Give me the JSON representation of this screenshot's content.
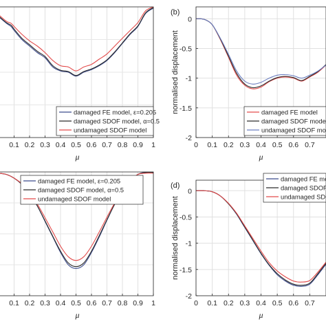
{
  "chart_data": [
    {
      "panel": "",
      "type": "line",
      "xlabel": "μ",
      "ylabel": "",
      "xlim": [
        0,
        1
      ],
      "ylim": [
        -2,
        0
      ],
      "x_ticks": [
        "0.1",
        "0.2",
        "0.3",
        "0.4",
        "0.5",
        "0.6",
        "0.7",
        "0.8",
        "0.9",
        "1"
      ],
      "y_ticks": [],
      "grid": true,
      "legend_position": "bottom-right",
      "series": [
        {
          "name": "damaged FE model, ε=0.205",
          "color": "#3b4a8c",
          "x": [
            0.0,
            0.05,
            0.08,
            0.1,
            0.15,
            0.2,
            0.25,
            0.3,
            0.35,
            0.4,
            0.45,
            0.5,
            0.55,
            0.6,
            0.65,
            0.7,
            0.75,
            0.8,
            0.85,
            0.9,
            0.95,
            1.0
          ],
          "y": [
            -0.15,
            -0.25,
            -0.3,
            -0.36,
            -0.5,
            -0.6,
            -0.7,
            -0.78,
            -0.92,
            -0.98,
            -1.0,
            -1.06,
            -1.0,
            -0.96,
            -0.9,
            -0.82,
            -0.7,
            -0.56,
            -0.42,
            -0.3,
            -0.1,
            -0.02
          ]
        },
        {
          "name": "damaged SDOF model, α=0.5",
          "color": "#2b2b2b",
          "x": [
            0.0,
            0.05,
            0.08,
            0.1,
            0.15,
            0.2,
            0.25,
            0.3,
            0.35,
            0.4,
            0.45,
            0.5,
            0.55,
            0.6,
            0.65,
            0.7,
            0.75,
            0.8,
            0.85,
            0.9,
            0.95,
            1.0
          ],
          "y": [
            -0.14,
            -0.24,
            -0.28,
            -0.34,
            -0.48,
            -0.58,
            -0.68,
            -0.76,
            -0.9,
            -0.97,
            -0.99,
            -1.05,
            -0.99,
            -0.95,
            -0.89,
            -0.81,
            -0.69,
            -0.55,
            -0.41,
            -0.29,
            -0.09,
            -0.01
          ]
        },
        {
          "name": "undamaged SDOF model",
          "color": "#e34a4a",
          "x": [
            0.0,
            0.05,
            0.08,
            0.1,
            0.15,
            0.2,
            0.25,
            0.3,
            0.35,
            0.4,
            0.45,
            0.5,
            0.55,
            0.6,
            0.65,
            0.7,
            0.75,
            0.8,
            0.85,
            0.9,
            0.95,
            1.0
          ],
          "y": [
            -0.12,
            -0.22,
            -0.25,
            -0.3,
            -0.42,
            -0.52,
            -0.6,
            -0.7,
            -0.82,
            -0.9,
            -0.92,
            -0.98,
            -0.92,
            -0.88,
            -0.8,
            -0.72,
            -0.6,
            -0.48,
            -0.36,
            -0.24,
            -0.06,
            0.0
          ]
        }
      ]
    },
    {
      "panel": "(b)",
      "type": "line",
      "xlabel": "μ",
      "ylabel": "normalised displacement",
      "xlim": [
        0,
        0.8
      ],
      "ylim": [
        -2,
        0.2
      ],
      "x_ticks": [
        "0",
        "0.1",
        "0.2",
        "0.3",
        "0.4",
        "0.5",
        "0.6",
        "0.7"
      ],
      "y_ticks": [
        "0",
        "-0.5",
        "-1",
        "-1.5",
        "-2"
      ],
      "grid": true,
      "legend_position": "bottom-right",
      "series": [
        {
          "name": "damaged FE model",
          "color": "#e34a4a",
          "x": [
            0.0,
            0.03,
            0.06,
            0.1,
            0.15,
            0.2,
            0.25,
            0.3,
            0.35,
            0.4,
            0.45,
            0.5,
            0.55,
            0.6,
            0.65,
            0.7,
            0.75,
            0.8
          ],
          "y": [
            0.0,
            0.0,
            -0.02,
            -0.1,
            -0.35,
            -0.65,
            -0.95,
            -1.12,
            -1.18,
            -1.15,
            -1.06,
            -1.0,
            -0.98,
            -1.0,
            -1.05,
            -0.98,
            -0.9,
            -0.78
          ]
        },
        {
          "name": "damaged SDOF model",
          "color": "#2b2b2b",
          "x": [
            0.0,
            0.03,
            0.06,
            0.1,
            0.15,
            0.2,
            0.25,
            0.3,
            0.35,
            0.4,
            0.45,
            0.5,
            0.55,
            0.6,
            0.65,
            0.7,
            0.75,
            0.8
          ],
          "y": [
            0.0,
            0.0,
            -0.02,
            -0.1,
            -0.34,
            -0.63,
            -0.92,
            -1.1,
            -1.16,
            -1.13,
            -1.05,
            -0.99,
            -0.97,
            -0.99,
            -1.04,
            -0.97,
            -0.89,
            -0.77
          ]
        },
        {
          "name": "undamaged SDOF model",
          "color": "#6a7ec0",
          "x": [
            0.0,
            0.03,
            0.06,
            0.1,
            0.15,
            0.2,
            0.25,
            0.3,
            0.35,
            0.4,
            0.45,
            0.5,
            0.55,
            0.6,
            0.65,
            0.7,
            0.75,
            0.8
          ],
          "y": [
            0.0,
            0.0,
            -0.02,
            -0.1,
            -0.33,
            -0.6,
            -0.88,
            -1.05,
            -1.1,
            -1.07,
            -1.0,
            -0.95,
            -0.94,
            -0.96,
            -1.0,
            -0.95,
            -0.88,
            -0.78
          ]
        }
      ]
    },
    {
      "panel": "",
      "type": "line",
      "xlabel": "μ",
      "ylabel": "",
      "xlim": [
        0,
        1
      ],
      "ylim": [
        -2,
        0
      ],
      "x_ticks": [
        "0.1",
        "0.2",
        "0.3",
        "0.4",
        "0.5",
        "0.6",
        "0.7",
        "0.8",
        "0.9",
        "1"
      ],
      "y_ticks": [],
      "grid": true,
      "legend_position": "top-right",
      "series": [
        {
          "name": "damaged FE model, ε=0.205",
          "color": "#3b4a8c",
          "x": [
            0.0,
            0.05,
            0.1,
            0.15,
            0.2,
            0.25,
            0.3,
            0.35,
            0.4,
            0.45,
            0.5,
            0.55,
            0.6,
            0.65,
            0.7,
            0.75,
            0.8,
            0.85,
            0.9,
            0.95,
            1.0
          ],
          "y": [
            -0.02,
            -0.04,
            -0.1,
            -0.2,
            -0.35,
            -0.55,
            -0.8,
            -1.05,
            -1.3,
            -1.5,
            -1.56,
            -1.5,
            -1.3,
            -1.05,
            -0.78,
            -0.52,
            -0.3,
            -0.14,
            -0.04,
            0.0,
            0.0
          ]
        },
        {
          "name": "damaged SDOF model, α=0.5",
          "color": "#2b2b2b",
          "x": [
            0.0,
            0.05,
            0.1,
            0.15,
            0.2,
            0.25,
            0.3,
            0.35,
            0.4,
            0.45,
            0.5,
            0.55,
            0.6,
            0.65,
            0.7,
            0.75,
            0.8,
            0.85,
            0.9,
            0.95,
            1.0
          ],
          "y": [
            -0.02,
            -0.04,
            -0.1,
            -0.2,
            -0.35,
            -0.55,
            -0.79,
            -1.04,
            -1.28,
            -1.47,
            -1.53,
            -1.47,
            -1.28,
            -1.03,
            -0.77,
            -0.52,
            -0.3,
            -0.14,
            -0.04,
            -0.01,
            -0.01
          ]
        },
        {
          "name": "undamaged SDOF model",
          "color": "#e34a4a",
          "x": [
            0.0,
            0.05,
            0.1,
            0.15,
            0.2,
            0.25,
            0.3,
            0.35,
            0.4,
            0.45,
            0.5,
            0.55,
            0.6,
            0.65,
            0.7,
            0.75,
            0.8,
            0.85,
            0.9,
            0.95,
            1.0
          ],
          "y": [
            -0.02,
            -0.04,
            -0.1,
            -0.19,
            -0.33,
            -0.52,
            -0.74,
            -0.97,
            -1.2,
            -1.37,
            -1.43,
            -1.37,
            -1.2,
            -0.97,
            -0.73,
            -0.5,
            -0.29,
            -0.14,
            -0.04,
            -0.02,
            -0.02
          ]
        }
      ]
    },
    {
      "panel": "(d)",
      "type": "line",
      "xlabel": "μ",
      "ylabel": "normalised displacement",
      "xlim": [
        0,
        0.8
      ],
      "ylim": [
        -2,
        0.2
      ],
      "x_ticks": [
        "0",
        "0.1",
        "0.2",
        "0.3",
        "0.4",
        "0.5",
        "0.6",
        "0.7"
      ],
      "y_ticks": [
        "0",
        "-0.5",
        "-1",
        "-1.5",
        "-2"
      ],
      "grid": true,
      "legend_position": "top-right",
      "series": [
        {
          "name": "damaged FE model",
          "color": "#3b4a8c",
          "x": [
            0.0,
            0.05,
            0.1,
            0.15,
            0.2,
            0.25,
            0.3,
            0.35,
            0.4,
            0.45,
            0.5,
            0.55,
            0.6,
            0.65,
            0.7,
            0.75,
            0.8
          ],
          "y": [
            0.0,
            0.0,
            -0.02,
            -0.1,
            -0.25,
            -0.45,
            -0.7,
            -0.95,
            -1.2,
            -1.42,
            -1.6,
            -1.72,
            -1.8,
            -1.82,
            -1.78,
            -1.6,
            -1.4
          ]
        },
        {
          "name": "damaged SDOF model",
          "color": "#2b2b2b",
          "x": [
            0.0,
            0.05,
            0.1,
            0.15,
            0.2,
            0.25,
            0.3,
            0.35,
            0.4,
            0.45,
            0.5,
            0.55,
            0.6,
            0.65,
            0.7,
            0.75,
            0.8
          ],
          "y": [
            0.0,
            0.0,
            -0.02,
            -0.1,
            -0.25,
            -0.44,
            -0.69,
            -0.94,
            -1.19,
            -1.41,
            -1.58,
            -1.7,
            -1.78,
            -1.8,
            -1.76,
            -1.58,
            -1.38
          ]
        },
        {
          "name": "undamaged SDOF model",
          "color": "#e34a4a",
          "x": [
            0.0,
            0.05,
            0.1,
            0.15,
            0.2,
            0.25,
            0.3,
            0.35,
            0.4,
            0.45,
            0.5,
            0.55,
            0.6,
            0.65,
            0.7,
            0.75,
            0.8
          ],
          "y": [
            0.0,
            0.0,
            -0.02,
            -0.1,
            -0.24,
            -0.43,
            -0.67,
            -0.91,
            -1.15,
            -1.37,
            -1.53,
            -1.64,
            -1.72,
            -1.74,
            -1.71,
            -1.55,
            -1.36
          ]
        }
      ]
    }
  ]
}
